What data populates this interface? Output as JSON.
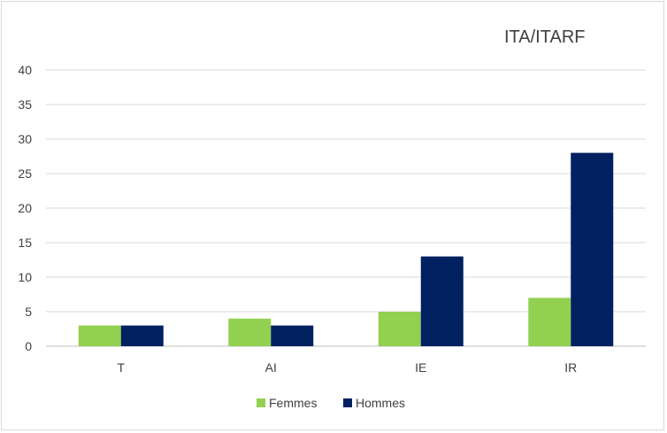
{
  "chart_data": {
    "type": "bar",
    "title": "ITA/ITARF",
    "categories": [
      "T",
      "AI",
      "IE",
      "IR"
    ],
    "series": [
      {
        "name": "Femmes",
        "values": [
          3,
          4,
          5,
          7
        ],
        "color": "#92d050"
      },
      {
        "name": "Hommes",
        "values": [
          3,
          3,
          13,
          28
        ],
        "color": "#002060"
      }
    ],
    "ylim": [
      0,
      40
    ],
    "yticks": [
      "0",
      "5",
      "10",
      "15",
      "20",
      "25",
      "30",
      "35",
      "40"
    ],
    "grid": true,
    "legend_position": "bottom"
  }
}
